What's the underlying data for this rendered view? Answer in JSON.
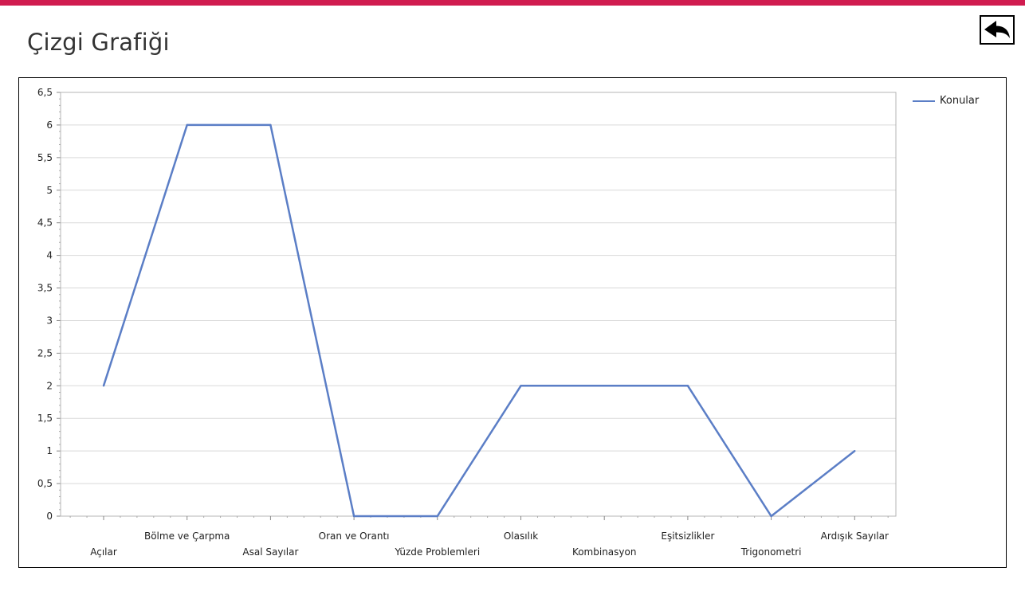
{
  "page": {
    "title": "Çizgi Grafiği",
    "back_icon": "back-arrow-icon"
  },
  "colors": {
    "accent_bar": "#d01c4f",
    "series_line": "#5b7ec6",
    "gridline": "#d9d9d9"
  },
  "chart_data": {
    "type": "line",
    "title": "",
    "xlabel": "",
    "ylabel": "",
    "categories": [
      "Açılar",
      "Bölme ve Çarpma",
      "Asal Sayılar",
      "Oran ve Orantı",
      "Yüzde Problemleri",
      "Olasılık",
      "Kombinasyon",
      "Eşitsizlikler",
      "Trigonometri",
      "Ardışık Sayılar"
    ],
    "series": [
      {
        "name": "Konular",
        "values": [
          2,
          6,
          6,
          0,
          0,
          2,
          2,
          2,
          0,
          1
        ]
      }
    ],
    "ylim": [
      0,
      6.5
    ],
    "y_ticks": [
      "0",
      "0,5",
      "1",
      "1,5",
      "2",
      "2,5",
      "3",
      "3,5",
      "4",
      "4,5",
      "5",
      "5,5",
      "6",
      "6,5"
    ],
    "grid": true,
    "legend": "top-right",
    "x_label_stagger": true
  }
}
